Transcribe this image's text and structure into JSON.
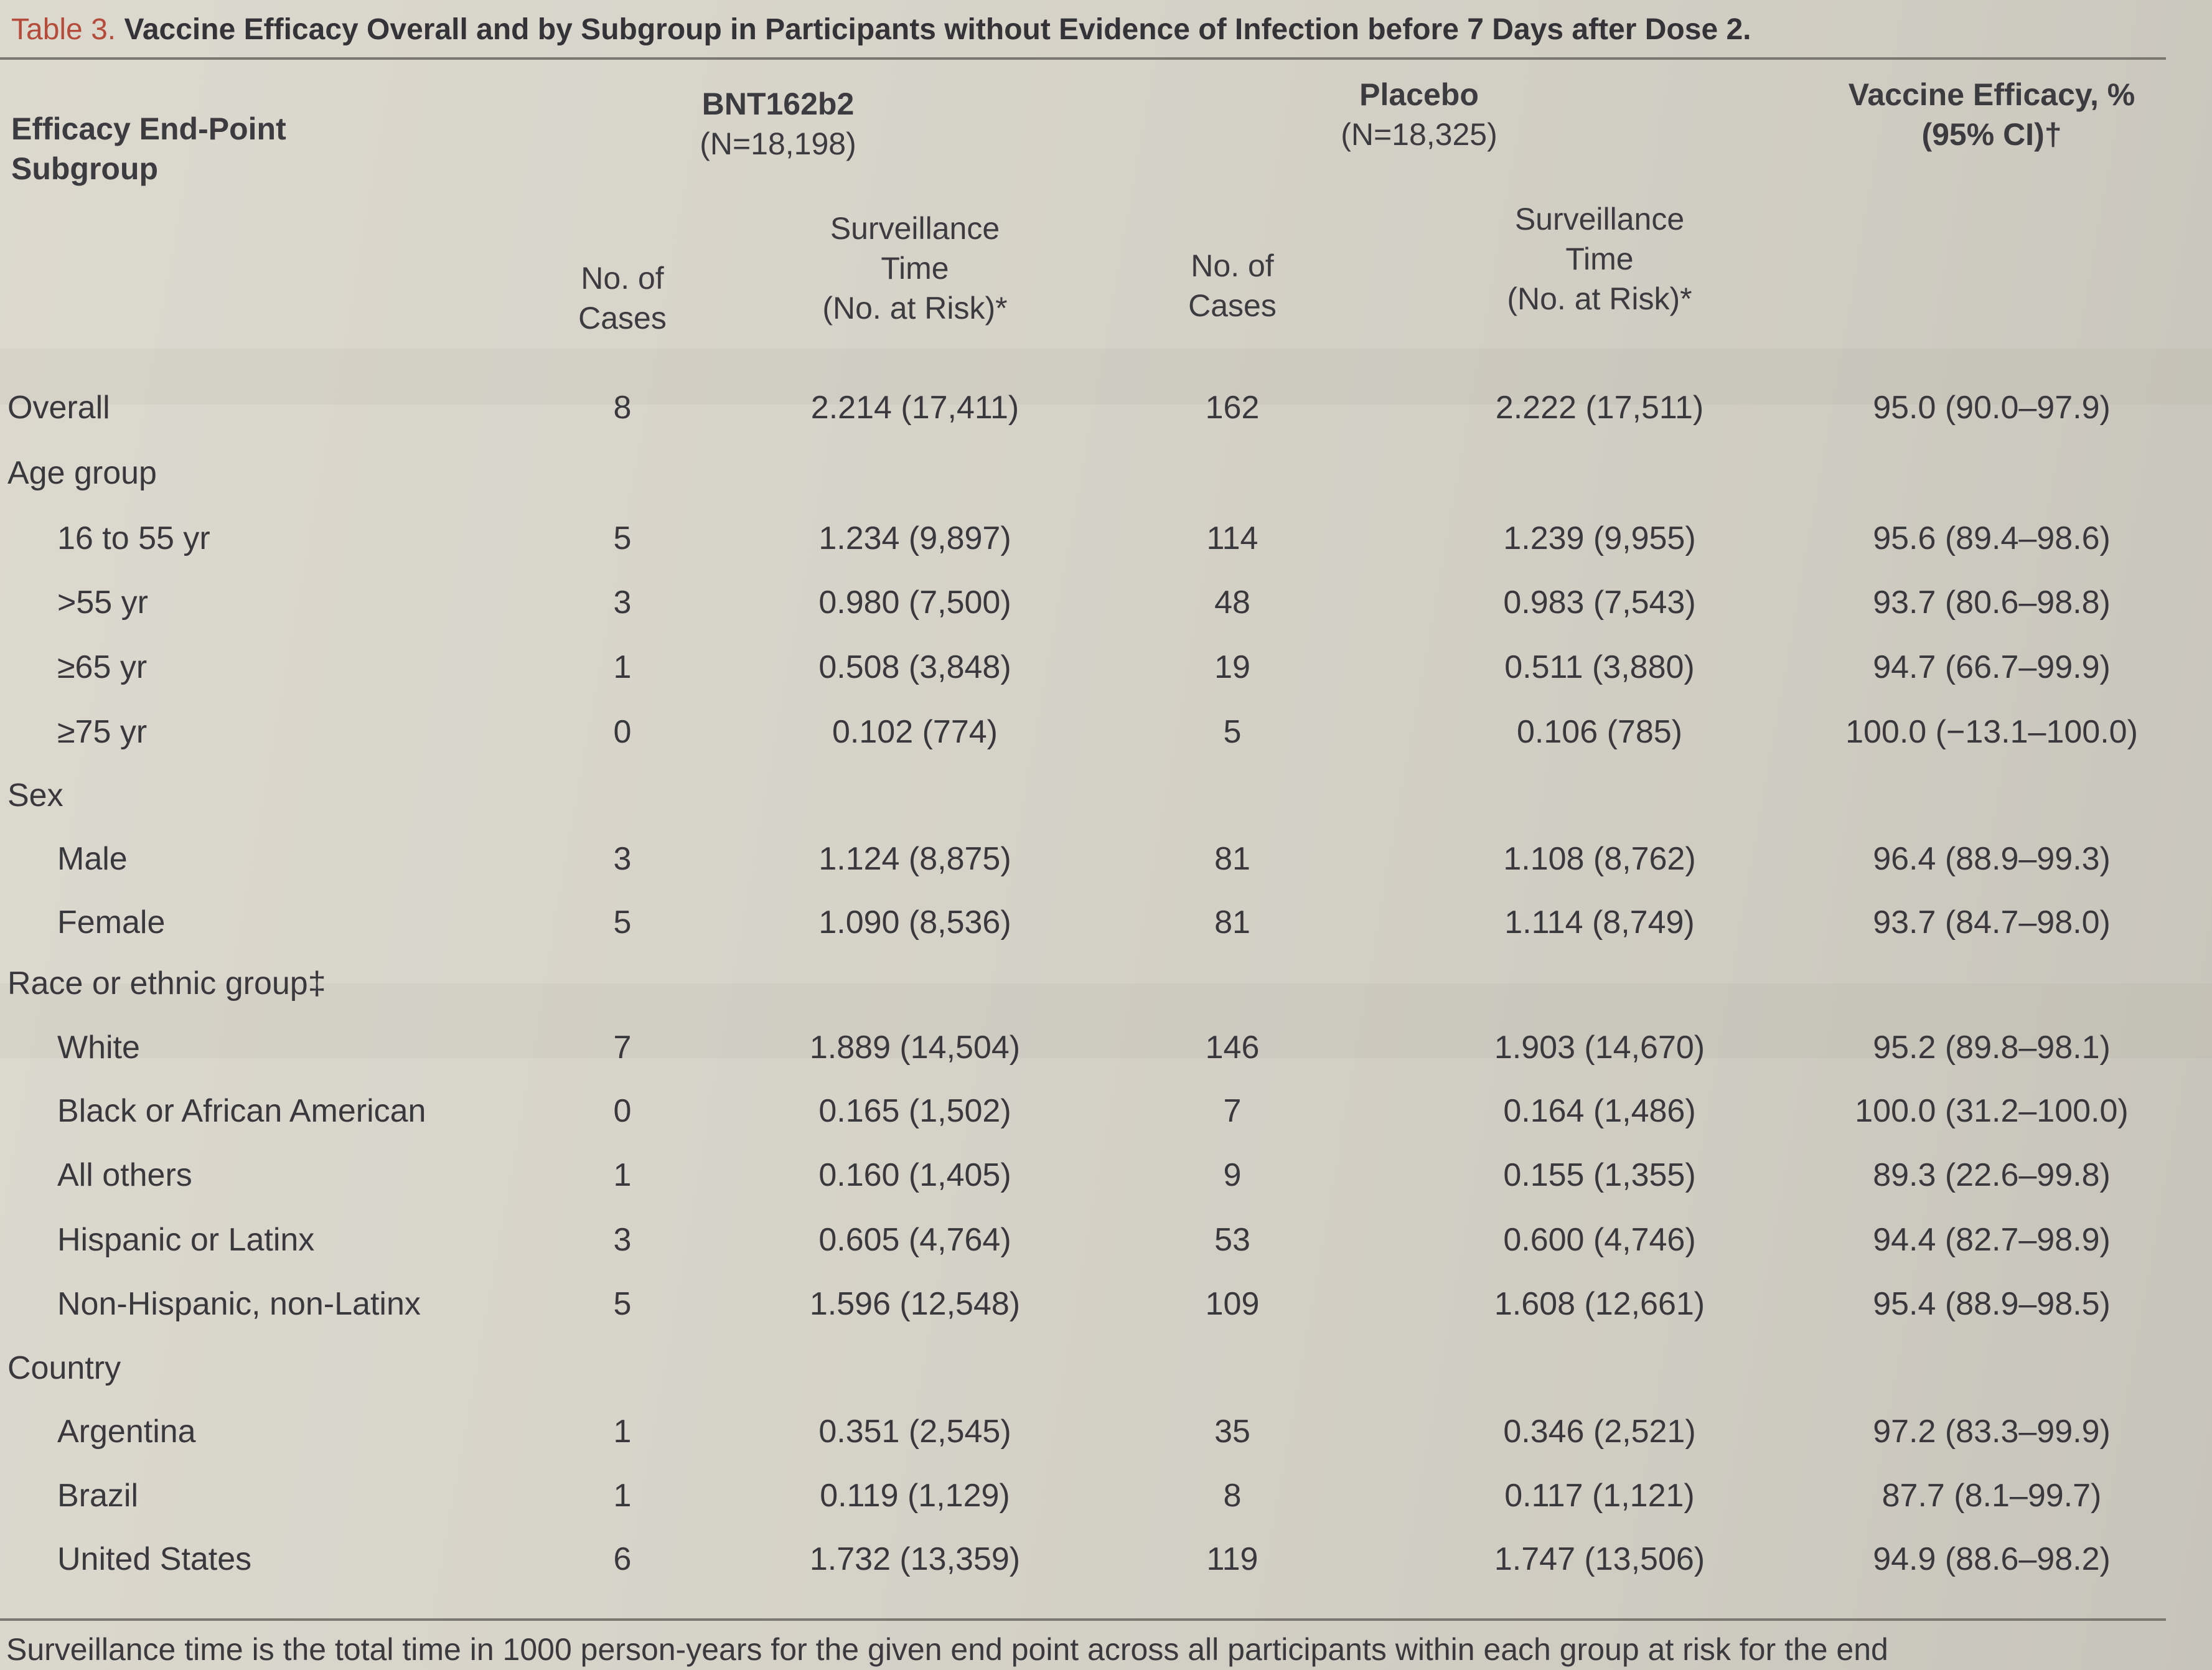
{
  "table": {
    "title_label": "Table 3.",
    "title_text": "Vaccine Efficacy Overall and by Subgroup in Participants without Evidence of Infection before 7 Days after Dose 2.",
    "headers": {
      "endpoint_line1": "Efficacy End-Point",
      "endpoint_line2": "Subgroup",
      "vaccine_group": "BNT162b2",
      "vaccine_n": "(N=18,198)",
      "placebo_group": "Placebo",
      "placebo_n": "(N=18,325)",
      "efficacy_line1": "Vaccine Efficacy, %",
      "efficacy_line2": "(95% CI)†",
      "cases_line1": "No. of",
      "cases_line2": "Cases",
      "time_line1": "Surveillance",
      "time_line2": "Time",
      "time_line3": "(No. at Risk)*"
    },
    "rows": [
      {
        "label": "Overall",
        "v_cases": "8",
        "v_time": "2.214 (17,411)",
        "p_cases": "162",
        "p_time": "2.222 (17,511)",
        "efficacy": "95.0 (90.0–97.9)"
      },
      {
        "label": "Age group",
        "v_cases": "",
        "v_time": "",
        "p_cases": "",
        "p_time": "",
        "efficacy": ""
      },
      {
        "label": "16 to 55 yr",
        "v_cases": "5",
        "v_time": "1.234 (9,897)",
        "p_cases": "114",
        "p_time": "1.239 (9,955)",
        "efficacy": "95.6 (89.4–98.6)"
      },
      {
        "label": ">55 yr",
        "v_cases": "3",
        "v_time": "0.980 (7,500)",
        "p_cases": "48",
        "p_time": "0.983 (7,543)",
        "efficacy": "93.7 (80.6–98.8)"
      },
      {
        "label": "≥65 yr",
        "v_cases": "1",
        "v_time": "0.508 (3,848)",
        "p_cases": "19",
        "p_time": "0.511 (3,880)",
        "efficacy": "94.7 (66.7–99.9)"
      },
      {
        "label": "≥75 yr",
        "v_cases": "0",
        "v_time": "0.102 (774)",
        "p_cases": "5",
        "p_time": "0.106 (785)",
        "efficacy": "100.0 (−13.1–100.0)"
      },
      {
        "label": "Sex",
        "v_cases": "",
        "v_time": "",
        "p_cases": "",
        "p_time": "",
        "efficacy": ""
      },
      {
        "label": "Male",
        "v_cases": "3",
        "v_time": "1.124 (8,875)",
        "p_cases": "81",
        "p_time": "1.108 (8,762)",
        "efficacy": "96.4 (88.9–99.3)"
      },
      {
        "label": "Female",
        "v_cases": "5",
        "v_time": "1.090 (8,536)",
        "p_cases": "81",
        "p_time": "1.114 (8,749)",
        "efficacy": "93.7 (84.7–98.0)"
      },
      {
        "label": "Race or ethnic group‡",
        "v_cases": "",
        "v_time": "",
        "p_cases": "",
        "p_time": "",
        "efficacy": ""
      },
      {
        "label": "White",
        "v_cases": "7",
        "v_time": "1.889 (14,504)",
        "p_cases": "146",
        "p_time": "1.903 (14,670)",
        "efficacy": "95.2 (89.8–98.1)"
      },
      {
        "label": "Black or African American",
        "v_cases": "0",
        "v_time": "0.165 (1,502)",
        "p_cases": "7",
        "p_time": "0.164 (1,486)",
        "efficacy": "100.0 (31.2–100.0)"
      },
      {
        "label": "All others",
        "v_cases": "1",
        "v_time": "0.160 (1,405)",
        "p_cases": "9",
        "p_time": "0.155 (1,355)",
        "efficacy": "89.3 (22.6–99.8)"
      },
      {
        "label": "Hispanic or Latinx",
        "v_cases": "3",
        "v_time": "0.605 (4,764)",
        "p_cases": "53",
        "p_time": "0.600 (4,746)",
        "efficacy": "94.4 (82.7–98.9)"
      },
      {
        "label": "Non-Hispanic, non-Latinx",
        "v_cases": "5",
        "v_time": "1.596 (12,548)",
        "p_cases": "109",
        "p_time": "1.608 (12,661)",
        "efficacy": "95.4 (88.9–98.5)"
      },
      {
        "label": "Country",
        "v_cases": "",
        "v_time": "",
        "p_cases": "",
        "p_time": "",
        "efficacy": ""
      },
      {
        "label": "Argentina",
        "v_cases": "1",
        "v_time": "0.351 (2,545)",
        "p_cases": "35",
        "p_time": "0.346 (2,521)",
        "efficacy": "97.2 (83.3–99.9)"
      },
      {
        "label": "Brazil",
        "v_cases": "1",
        "v_time": "0.119 (1,129)",
        "p_cases": "8",
        "p_time": "0.117 (1,121)",
        "efficacy": "87.7 (8.1–99.7)"
      },
      {
        "label": "United States",
        "v_cases": "6",
        "v_time": "1.732 (13,359)",
        "p_cases": "119",
        "p_time": "1.747 (13,506)",
        "efficacy": "94.9 (88.6–98.2)"
      }
    ],
    "footnote": "Surveillance time is the total time in 1000 person-years for the given end point across all participants within each group at risk for the end"
  }
}
